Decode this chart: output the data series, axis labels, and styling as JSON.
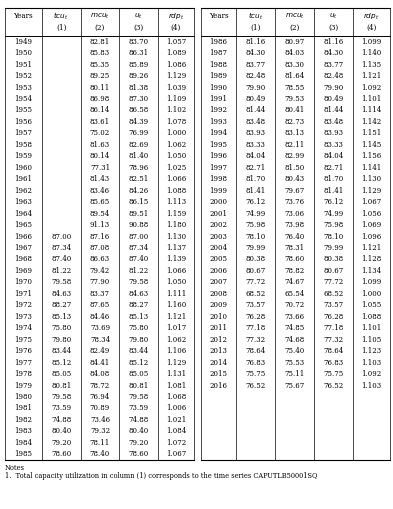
{
  "left_data": [
    [
      "1949",
      "",
      "82.81",
      "83.70",
      "1.057"
    ],
    [
      "1950",
      "",
      "85.83",
      "86.31",
      "1.089"
    ],
    [
      "1951",
      "",
      "85.35",
      "85.89",
      "1.086"
    ],
    [
      "1952",
      "",
      "89.25",
      "89.26",
      "1.129"
    ],
    [
      "1953",
      "",
      "80.11",
      "81.38",
      "1.039"
    ],
    [
      "1954",
      "",
      "86.98",
      "87.30",
      "1.109"
    ],
    [
      "1955",
      "",
      "86.14",
      "86.58",
      "1.102"
    ],
    [
      "1956",
      "",
      "83.61",
      "84.39",
      "1.078"
    ],
    [
      "1957",
      "",
      "75.02",
      "76.99",
      "1.000"
    ],
    [
      "1958",
      "",
      "81.63",
      "82.69",
      "1.062"
    ],
    [
      "1959",
      "",
      "80.14",
      "81.40",
      "1.050"
    ],
    [
      "1960",
      "",
      "77.31",
      "78.96",
      "1.025"
    ],
    [
      "1961",
      "",
      "81.43",
      "82.51",
      "1.066"
    ],
    [
      "1962",
      "",
      "83.46",
      "84.26",
      "1.088"
    ],
    [
      "1963",
      "",
      "85.65",
      "86.15",
      "1.113"
    ],
    [
      "1964",
      "",
      "89.54",
      "89.51",
      "1.159"
    ],
    [
      "1965",
      "",
      "91.13",
      "90.88",
      "1.180"
    ],
    [
      "1966",
      "87.00",
      "87.16",
      "87.00",
      "1.130"
    ],
    [
      "1967",
      "87.34",
      "87.08",
      "87.34",
      "1.137"
    ],
    [
      "1968",
      "87.40",
      "86.63",
      "87.40",
      "1.139"
    ],
    [
      "1969",
      "81.22",
      "79.42",
      "81.22",
      "1.066"
    ],
    [
      "1970",
      "79.58",
      "77.90",
      "79.58",
      "1.050"
    ],
    [
      "1971",
      "84.63",
      "83.37",
      "84.63",
      "1.111"
    ],
    [
      "1972",
      "88.27",
      "87.65",
      "88.27",
      "1.160"
    ],
    [
      "1973",
      "85.13",
      "84.46",
      "85.13",
      "1.121"
    ],
    [
      "1974",
      "75.80",
      "73.69",
      "75.80",
      "1.017"
    ],
    [
      "1975",
      "79.80",
      "78.34",
      "79.80",
      "1.062"
    ],
    [
      "1976",
      "83.44",
      "82.49",
      "83.44",
      "1.106"
    ],
    [
      "1977",
      "85.12",
      "84.41",
      "85.12",
      "1.129"
    ],
    [
      "1978",
      "85.05",
      "84.08",
      "85.05",
      "1.131"
    ],
    [
      "1979",
      "80.81",
      "78.72",
      "80.81",
      "1.081"
    ],
    [
      "1980",
      "79.58",
      "76.94",
      "79.58",
      "1.068"
    ],
    [
      "1981",
      "73.59",
      "70.89",
      "73.59",
      "1.006"
    ],
    [
      "1982",
      "74.88",
      "73.46",
      "74.88",
      "1.021"
    ],
    [
      "1983",
      "80.40",
      "79.32",
      "80.40",
      "1.084"
    ],
    [
      "1984",
      "79.20",
      "78.11",
      "79.20",
      "1.072"
    ],
    [
      "1985",
      "78.60",
      "78.40",
      "78.60",
      "1.067"
    ]
  ],
  "right_data": [
    [
      "1986",
      "81.16",
      "80.97",
      "81.16",
      "1.099"
    ],
    [
      "1987",
      "84.30",
      "84.03",
      "84.30",
      "1.140"
    ],
    [
      "1988",
      "83.77",
      "83.30",
      "83.77",
      "1.135"
    ],
    [
      "1989",
      "82.48",
      "81.64",
      "82.48",
      "1.121"
    ],
    [
      "1990",
      "79.90",
      "78.55",
      "79.90",
      "1.092"
    ],
    [
      "1991",
      "80.49",
      "79.53",
      "80.49",
      "1.101"
    ],
    [
      "1992",
      "81.44",
      "80.41",
      "81.44",
      "1.114"
    ],
    [
      "1993",
      "83.48",
      "82.73",
      "83.48",
      "1.142"
    ],
    [
      "1994",
      "83.93",
      "83.13",
      "83.93",
      "1.151"
    ],
    [
      "1995",
      "83.33",
      "82.11",
      "83.33",
      "1.145"
    ],
    [
      "1996",
      "84.04",
      "82.99",
      "84.04",
      "1.156"
    ],
    [
      "1997",
      "82.71",
      "81.50",
      "82.71",
      "1.141"
    ],
    [
      "1998",
      "81.70",
      "80.43",
      "81.70",
      "1.130"
    ],
    [
      "1999",
      "81.41",
      "79.67",
      "81.41",
      "1.129"
    ],
    [
      "2000",
      "76.12",
      "73.76",
      "76.12",
      "1.067"
    ],
    [
      "2001",
      "74.99",
      "73.06",
      "74.99",
      "1.056"
    ],
    [
      "2002",
      "75.98",
      "73.98",
      "75.98",
      "1.069"
    ],
    [
      "2003",
      "78.10",
      "76.40",
      "78.10",
      "1.096"
    ],
    [
      "2004",
      "79.99",
      "78.31",
      "79.99",
      "1.121"
    ],
    [
      "2005",
      "80.38",
      "78.60",
      "80.38",
      "1.128"
    ],
    [
      "2006",
      "80.67",
      "78.82",
      "80.67",
      "1.134"
    ],
    [
      "2007",
      "77.72",
      "74.67",
      "77.72",
      "1.099"
    ],
    [
      "2008",
      "68.52",
      "65.54",
      "68.52",
      "1.000"
    ],
    [
      "2009",
      "73.57",
      "70.72",
      "73.57",
      "1.055"
    ],
    [
      "2010",
      "76.28",
      "73.66",
      "76.28",
      "1.088"
    ],
    [
      "2011",
      "77.18",
      "74.85",
      "77.18",
      "1.101"
    ],
    [
      "2012",
      "77.32",
      "74.68",
      "77.32",
      "1.105"
    ],
    [
      "2013",
      "78.64",
      "75.40",
      "78.64",
      "1.123"
    ],
    [
      "2014",
      "76.83",
      "75.53",
      "76.83",
      "1.103"
    ],
    [
      "2015",
      "75.75",
      "75.11",
      "75.75",
      "1.092"
    ],
    [
      "2016",
      "76.52",
      "75.67",
      "76.52",
      "1.103"
    ]
  ],
  "note_line1": "Notes",
  "note_line2": "1.  Total capacity utilization in column (1) corresponds to the time series CAPUTLB50001SQ"
}
